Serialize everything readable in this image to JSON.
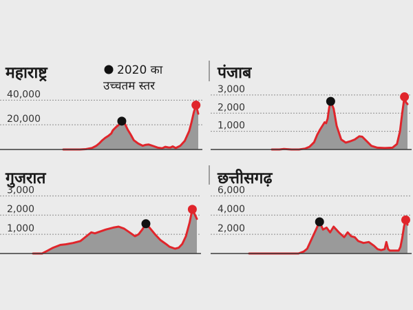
{
  "legend": {
    "line1": "2020 का",
    "line2": "उच्चतम स्तर",
    "peak_color": "#111111",
    "latest_color": "#e0252b"
  },
  "colors": {
    "line": "#e0252b",
    "area": "#9a9a9a",
    "background": "#ebebeb"
  },
  "chart_data": [
    {
      "type": "area",
      "title": "महाराष्ट्र",
      "yticks": [
        {
          "value": 20000,
          "label": "20,000"
        },
        {
          "value": 40000,
          "label": "40,000"
        }
      ],
      "ylim": [
        0,
        43000
      ],
      "x": [
        0,
        12,
        22,
        30,
        38,
        44,
        48,
        52,
        56,
        60,
        64,
        66,
        70,
        74,
        78,
        82,
        86,
        90,
        94,
        100,
        106,
        110,
        114,
        120,
        126,
        132,
        136,
        140,
        143,
        146,
        150,
        156,
        162,
        168,
        171,
        174,
        177,
        180
      ],
      "series": [
        {
          "values": [
            0,
            0,
            0,
            300,
            1200,
            3000,
            5000,
            7500,
            9500,
            11000,
            13000,
            15500,
            18000,
            20000,
            23000,
            21000,
            16000,
            12000,
            7500,
            4800,
            3000,
            3800,
            4000,
            2800,
            1500,
            1000,
            2200,
            1700,
            1600,
            2500,
            1200,
            3000,
            7000,
            15000,
            22000,
            30000,
            36000,
            29000
          ]
        }
      ],
      "peak": {
        "x": 78,
        "y": 23000
      },
      "latest": {
        "x": 177,
        "y": 36000
      }
    },
    {
      "type": "area",
      "title": "पंजाब",
      "yticks": [
        {
          "value": 1000,
          "label": "1,000"
        },
        {
          "value": 2000,
          "label": "2,000"
        },
        {
          "value": 3000,
          "label": "3,000"
        }
      ],
      "ylim": [
        0,
        3300
      ],
      "x": [
        0,
        10,
        16,
        26,
        36,
        44,
        50,
        56,
        60,
        64,
        70,
        72,
        74,
        76,
        78,
        82,
        86,
        92,
        98,
        104,
        110,
        116,
        120,
        126,
        132,
        140,
        150,
        160,
        166,
        170,
        173,
        176,
        178,
        180
      ],
      "series": [
        {
          "values": [
            0,
            0,
            30,
            0,
            0,
            50,
            150,
            400,
            800,
            1100,
            1500,
            1450,
            1700,
            2300,
            2650,
            2250,
            1300,
            550,
            380,
            450,
            550,
            730,
            700,
            450,
            200,
            100,
            80,
            100,
            300,
            1000,
            2000,
            2900,
            2600,
            2500
          ]
        }
      ],
      "peak": {
        "x": 78,
        "y": 2650
      },
      "latest": {
        "x": 176,
        "y": 2900
      }
    },
    {
      "type": "area",
      "title": "गुजरात",
      "yticks": [
        {
          "value": 1000,
          "label": "1,000"
        },
        {
          "value": 2000,
          "label": "2,000"
        },
        {
          "value": 3000,
          "label": "3,000"
        }
      ],
      "ylim": [
        0,
        3300
      ],
      "x": [
        0,
        10,
        16,
        22,
        30,
        36,
        44,
        52,
        60,
        64,
        68,
        74,
        80,
        84,
        88,
        94,
        100,
        106,
        112,
        116,
        120,
        124,
        128,
        134,
        140,
        146,
        150,
        156,
        160,
        164,
        168,
        172,
        175,
        178,
        180
      ],
      "series": [
        {
          "values": [
            0,
            0,
            150,
            300,
            450,
            480,
            550,
            650,
            950,
            1100,
            1050,
            1150,
            1250,
            1300,
            1350,
            1400,
            1300,
            1100,
            900,
            1000,
            1250,
            1550,
            1350,
            1000,
            700,
            500,
            350,
            250,
            300,
            500,
            900,
            1600,
            2300,
            2000,
            1800
          ]
        }
      ],
      "peak": {
        "x": 124,
        "y": 1550
      },
      "latest": {
        "x": 175,
        "y": 2300
      }
    },
    {
      "type": "area",
      "title": "छत्तीसगढ़",
      "yticks": [
        {
          "value": 2000,
          "label": "2,000"
        },
        {
          "value": 4000,
          "label": "4,000"
        },
        {
          "value": 6000,
          "label": "6,000"
        }
      ],
      "ylim": [
        0,
        6600
      ],
      "x": [
        0,
        20,
        40,
        56,
        62,
        66,
        70,
        76,
        80,
        84,
        88,
        92,
        96,
        102,
        108,
        112,
        116,
        120,
        124,
        130,
        136,
        142,
        146,
        150,
        154,
        156,
        158,
        160,
        164,
        170,
        172,
        174,
        176,
        178,
        180
      ],
      "series": [
        {
          "values": [
            0,
            0,
            0,
            0,
            200,
            500,
            1300,
            2500,
            3300,
            2500,
            2700,
            2200,
            2800,
            2200,
            1700,
            2200,
            1800,
            1700,
            1300,
            1100,
            1200,
            800,
            450,
            350,
            450,
            1200,
            450,
            300,
            300,
            300,
            700,
            1600,
            2800,
            3500,
            3000
          ]
        }
      ],
      "peak": {
        "x": 80,
        "y": 3300
      },
      "latest": {
        "x": 178,
        "y": 3500
      }
    }
  ]
}
